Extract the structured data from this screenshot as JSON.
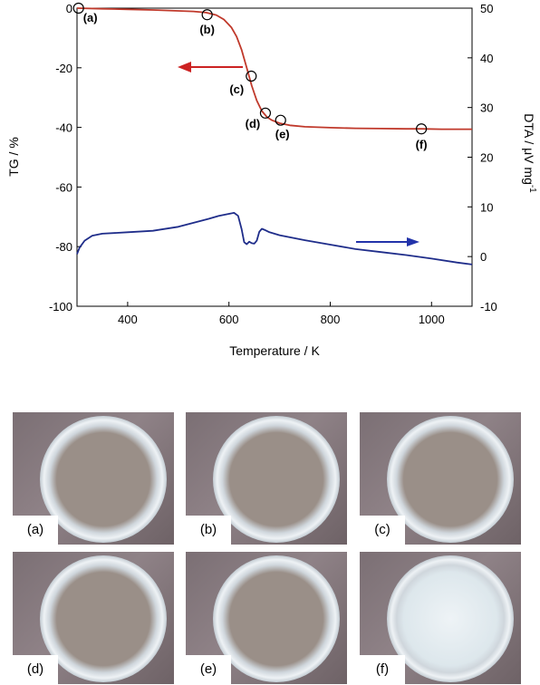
{
  "chart_data": {
    "type": "line",
    "xlabel": "Temperature / K",
    "ylabel_left": "TG / %",
    "ylabel_right": "DTA / μV mg",
    "ylabel_right_superscript": "-1",
    "xlim": [
      300,
      1080
    ],
    "ylim_left": [
      -100,
      0
    ],
    "ylim_right": [
      -10,
      50
    ],
    "x_ticks": [
      400,
      600,
      800,
      1000
    ],
    "y_left_ticks": [
      0,
      -20,
      -40,
      -60,
      -80,
      -100
    ],
    "y_right_ticks": [
      50,
      40,
      30,
      20,
      10,
      0,
      -10
    ],
    "series": [
      {
        "axis": "left",
        "color": "#c0392b",
        "x": [
          300,
          350,
          400,
          450,
          500,
          530,
          555,
          575,
          590,
          605,
          615,
          625,
          635,
          645,
          655,
          665,
          675,
          685,
          700,
          720,
          750,
          800,
          850,
          900,
          950,
          980,
          1020,
          1080
        ],
        "y": [
          0,
          -0.2,
          -0.4,
          -0.6,
          -0.9,
          -1.1,
          -1.5,
          -2.3,
          -3.8,
          -6.5,
          -9.5,
          -14,
          -20,
          -26,
          -31,
          -34.5,
          -36.5,
          -37.6,
          -38.6,
          -39.3,
          -39.8,
          -40.1,
          -40.3,
          -40.4,
          -40.5,
          -40.5,
          -40.6,
          -40.6
        ]
      },
      {
        "axis": "right",
        "color": "#1f2d8a",
        "x": [
          300,
          305,
          315,
          330,
          350,
          400,
          450,
          500,
          530,
          560,
          580,
          600,
          610,
          618,
          625,
          630,
          635,
          640,
          645,
          650,
          655,
          660,
          665,
          670,
          680,
          700,
          750,
          800,
          850,
          900,
          950,
          1000,
          1050,
          1080
        ],
        "y": [
          0.5,
          1.8,
          3.2,
          4.2,
          4.6,
          4.9,
          5.2,
          6.0,
          6.8,
          7.6,
          8.2,
          8.6,
          8.8,
          8.2,
          5.5,
          2.9,
          2.5,
          3.0,
          2.7,
          2.6,
          3.2,
          5.0,
          5.6,
          5.4,
          4.9,
          4.3,
          3.3,
          2.4,
          1.5,
          0.9,
          0.3,
          -0.4,
          -1.2,
          -1.6
        ]
      }
    ],
    "points": [
      {
        "label": "(a)",
        "x": 303,
        "y": 0
      },
      {
        "label": "(b)",
        "x": 557,
        "y": -2.2
      },
      {
        "label": "(c)",
        "x": 644,
        "y": -22.8
      },
      {
        "label": "(d)",
        "x": 672,
        "y": -35.2
      },
      {
        "label": "(e)",
        "x": 702,
        "y": -37.6
      },
      {
        "label": "(f)",
        "x": 980,
        "y": -40.5
      }
    ],
    "arrows": [
      {
        "direction": "left",
        "color": "#cc2222",
        "axis": "left"
      },
      {
        "direction": "right",
        "color": "#2233aa",
        "axis": "right"
      }
    ]
  },
  "photos": [
    {
      "label": "(a)",
      "appearance": "grey powder"
    },
    {
      "label": "(b)",
      "appearance": "grey powder"
    },
    {
      "label": "(c)",
      "appearance": "grey powder"
    },
    {
      "label": "(d)",
      "appearance": "grey powder"
    },
    {
      "label": "(e)",
      "appearance": "grey powder"
    },
    {
      "label": "(f)",
      "appearance": "white powder"
    }
  ]
}
